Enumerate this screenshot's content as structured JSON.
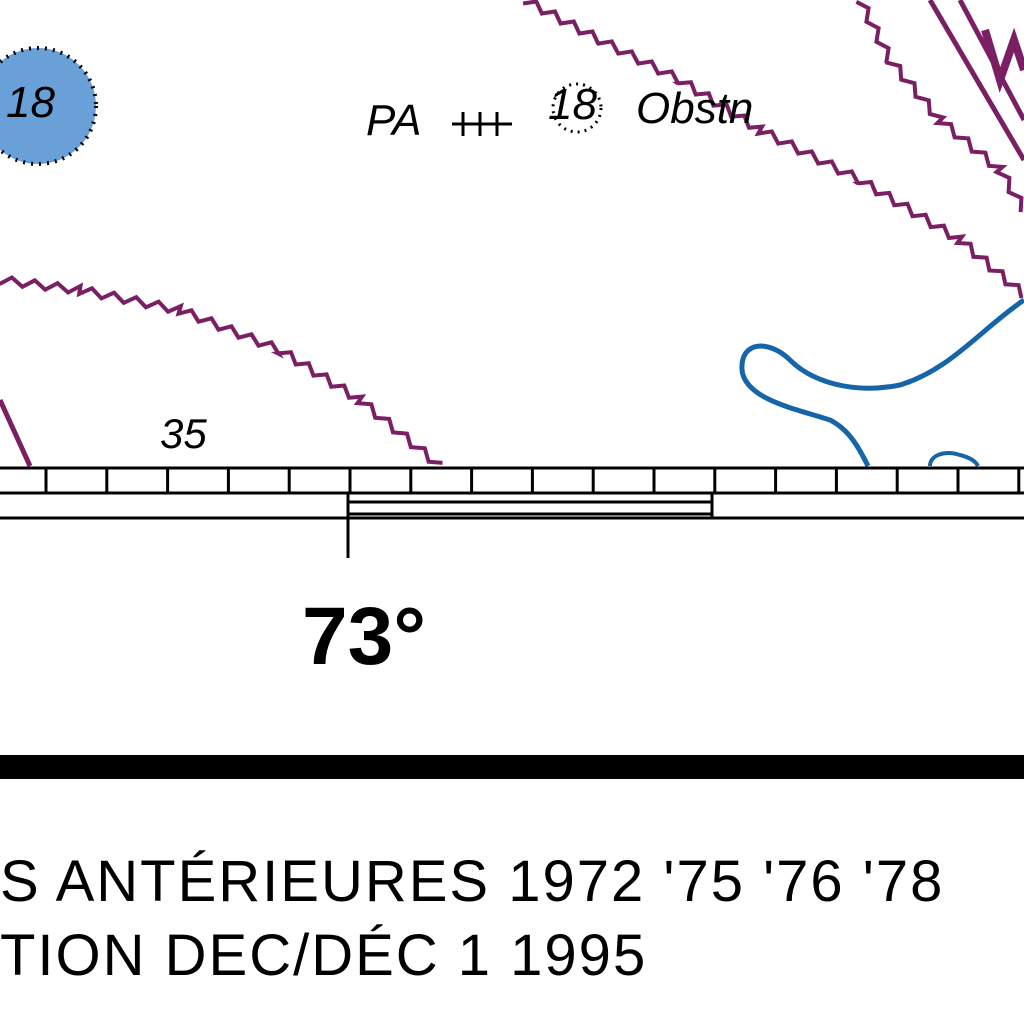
{
  "map": {
    "depth_circle_label": "18",
    "pa_label": "PA",
    "small_depth": "18",
    "obstruction_label": "Obstn",
    "sounding": "35",
    "longitude_label": "73°"
  },
  "footer": {
    "line1": "S ANTÉRIEURES   1972 '75 '76 '78",
    "line2": "TION  DEC/DÉC 1 1995"
  },
  "colors": {
    "boundary_purple": "#7a1f63",
    "shoreline_blue": "#1565a8",
    "depth_circle_fill": "#6aa0d8"
  }
}
